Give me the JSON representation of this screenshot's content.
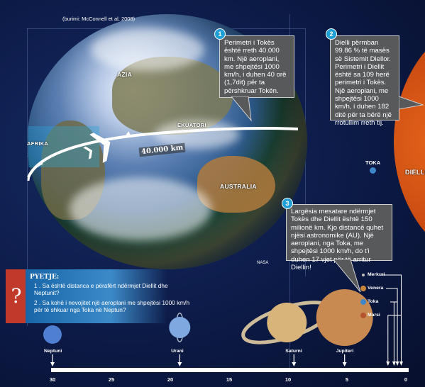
{
  "source_note": "(burimi: McConnell et al, 2008)",
  "earth_labels": {
    "asia": "AZIA",
    "africa": "AFRIKA",
    "australia": "AUSTRALIA",
    "equator": "EKUATORI",
    "distance": "40.000 km",
    "credit": "NASA"
  },
  "sun_label": "DIELLI",
  "toka_label": "TOKA",
  "callouts": [
    {
      "number": "1",
      "text": "Perimetri i Tokës është rreth 40.000 km. Një aeroplani, me shpejtësi 1000 km/h, i duhen 40 orë (1,7dit) për ta përshkruar Tokën."
    },
    {
      "number": "2",
      "text": "Dielli përmban 99.86 % të masës së Sistemit Diellor. Perimetri i Diellit është sa 109 herë perimetri i Tokës. Një aeroplani, me shpejtësi 1000 km/h, i duhen 182 ditë për ta bërë një rrotullim rreth tij."
    },
    {
      "number": "3",
      "text": "Largësia mesatare ndërmjet Tokës dhe Diellit është 150 milionë km. Kjo distancë quhet njësi astronomike (AU). Një aeroplani, nga Toka, me shpejtësi 1000 km/h, do t'i duhen 17 vjet për të arritur Diellin!"
    }
  ],
  "questions": {
    "mark": "?",
    "title": "PYETJE:",
    "items": [
      "1 . Sa është distanca e përafërt ndërmjet Diellit dhe Neptunit?",
      "2 . Sa kohë i nevojitet një aeroplani me shpejtësi 1000 km/h për të shkuar nga Toka në Neptun?"
    ]
  },
  "planets": [
    {
      "name": "Neptuni",
      "au": 30,
      "color": "#4f7fd0"
    },
    {
      "name": "Urani",
      "au": 19.2,
      "color": "#7fa8e0"
    },
    {
      "name": "Saturni",
      "au": 9.5,
      "color": "#d9b47a"
    },
    {
      "name": "Jupiteri",
      "au": 5.2,
      "color": "#c98a52"
    }
  ],
  "inner_planets": [
    {
      "name": "Merkuri",
      "au": 0.39,
      "color": "#bdbdbd"
    },
    {
      "name": "Venera",
      "au": 0.72,
      "color": "#c9863d"
    },
    {
      "name": "Toka",
      "au": 1,
      "color": "#3d86c9"
    },
    {
      "name": "Marsi",
      "au": 1.52,
      "color": "#b5542e"
    }
  ],
  "scale": {
    "min": 0,
    "max": 30,
    "reversed": true,
    "tick_labels": [
      "30",
      "25",
      "20",
      "15",
      "10",
      "5",
      "0"
    ]
  }
}
